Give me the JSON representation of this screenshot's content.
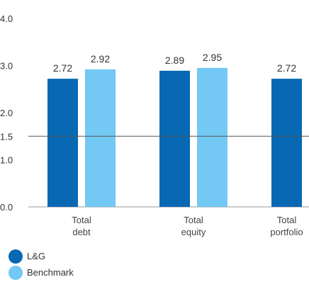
{
  "chart_data": {
    "type": "bar",
    "categories": [
      "Total\ndebt",
      "Total\nequity",
      "Total\nportfolio"
    ],
    "series": [
      {
        "name": "L&G",
        "values": [
          2.72,
          2.89,
          2.72
        ],
        "color": "#0768b4"
      },
      {
        "name": "Benchmark",
        "values": [
          2.92,
          2.95,
          null
        ],
        "color": "#73c8f4"
      }
    ],
    "data_labels": [
      [
        "2.72",
        "2.92"
      ],
      [
        "2.89",
        "2.95"
      ],
      [
        "2.72"
      ]
    ],
    "yticks": [
      "0.0",
      "1.0",
      "1.5",
      "2.0",
      "3.0",
      "4.0"
    ],
    "ytick_values": [
      0,
      1.0,
      1.5,
      2.0,
      3.0,
      4.0
    ],
    "ylim": [
      0,
      4.0
    ],
    "reference_line": 1.5,
    "legend_position": "bottom-left",
    "grid": false
  }
}
